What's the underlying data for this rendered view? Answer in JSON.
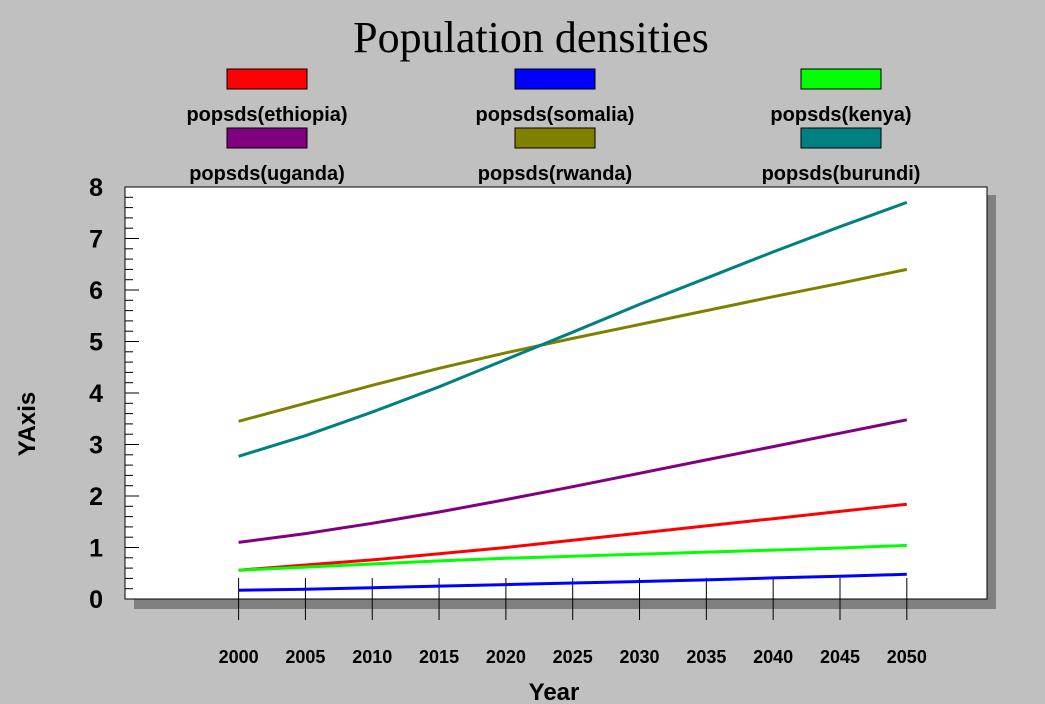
{
  "chart_data": {
    "type": "line",
    "title": "Population densities",
    "xlabel": "Year",
    "ylabel": "YAxis",
    "x": [
      2000,
      2005,
      2010,
      2015,
      2020,
      2025,
      2030,
      2035,
      2040,
      2045,
      2050
    ],
    "xlim": [
      1991.5,
      2056
    ],
    "ylim": [
      0,
      8
    ],
    "y_ticks": [
      0,
      1,
      2,
      3,
      4,
      5,
      6,
      7,
      8
    ],
    "grid": false,
    "legend_position": "top",
    "series": [
      {
        "name": "popsds(ethiopia)",
        "color": "#ff0000",
        "values": [
          0.56,
          0.66,
          0.76,
          0.88,
          1.0,
          1.14,
          1.28,
          1.42,
          1.56,
          1.7,
          1.84
        ]
      },
      {
        "name": "popsds(somalia)",
        "color": "#0000ff",
        "values": [
          0.17,
          0.19,
          0.22,
          0.25,
          0.28,
          0.31,
          0.34,
          0.37,
          0.41,
          0.44,
          0.48
        ]
      },
      {
        "name": "popsds(kenya)",
        "color": "#00ff00",
        "values": [
          0.56,
          0.62,
          0.68,
          0.74,
          0.79,
          0.83,
          0.87,
          0.91,
          0.95,
          0.99,
          1.04
        ]
      },
      {
        "name": "popsds(uganda)",
        "color": "#800080",
        "values": [
          1.1,
          1.27,
          1.47,
          1.69,
          1.93,
          2.18,
          2.44,
          2.7,
          2.96,
          3.22,
          3.48
        ]
      },
      {
        "name": "popsds(rwanda)",
        "color": "#808000",
        "values": [
          3.45,
          3.8,
          4.15,
          4.48,
          4.78,
          5.06,
          5.33,
          5.6,
          5.87,
          6.13,
          6.4
        ]
      },
      {
        "name": "popsds(burundi)",
        "color": "#008080",
        "values": [
          2.77,
          3.17,
          3.63,
          4.12,
          4.65,
          5.18,
          5.72,
          6.23,
          6.74,
          7.23,
          7.7
        ]
      }
    ]
  }
}
